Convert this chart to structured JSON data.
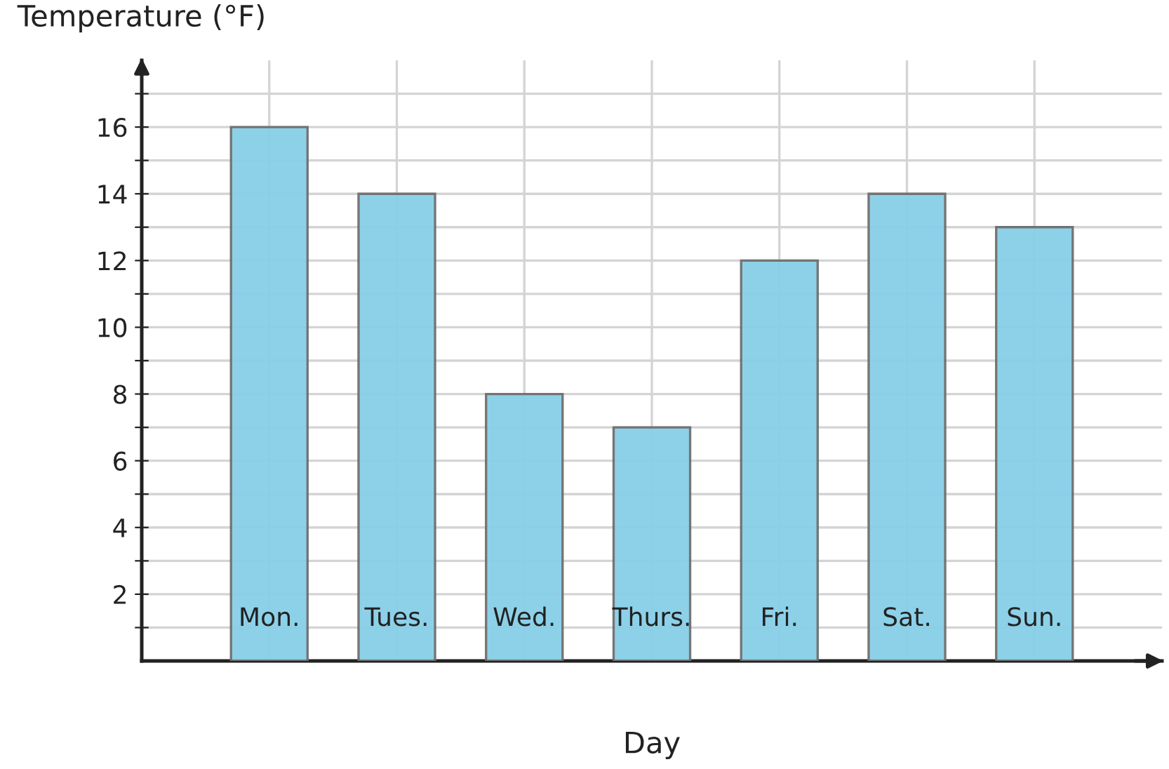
{
  "chart_data": {
    "type": "bar",
    "xlabel": "Day",
    "ylabel": "Temperature (°F)",
    "categories": [
      "Mon.",
      "Tues.",
      "Wed.",
      "Thurs.",
      "Fri.",
      "Sat.",
      "Sun."
    ],
    "values": [
      16,
      14,
      8,
      7,
      12,
      14,
      13
    ],
    "color": "#87cfe8",
    "ylim": [
      0,
      18
    ],
    "yticks": [
      {
        "value": 1,
        "label": null
      },
      2,
      {
        "value": 3,
        "label": null
      },
      4,
      {
        "value": 5,
        "label": null
      },
      6,
      {
        "value": 7,
        "label": null
      },
      8,
      {
        "value": 9,
        "label": null
      },
      10,
      {
        "value": 11,
        "label": null
      },
      12,
      {
        "value": 13,
        "label": null
      },
      14,
      {
        "value": 15,
        "label": null
      },
      16,
      {
        "value": 17,
        "label": null
      }
    ],
    "grid": true
  }
}
